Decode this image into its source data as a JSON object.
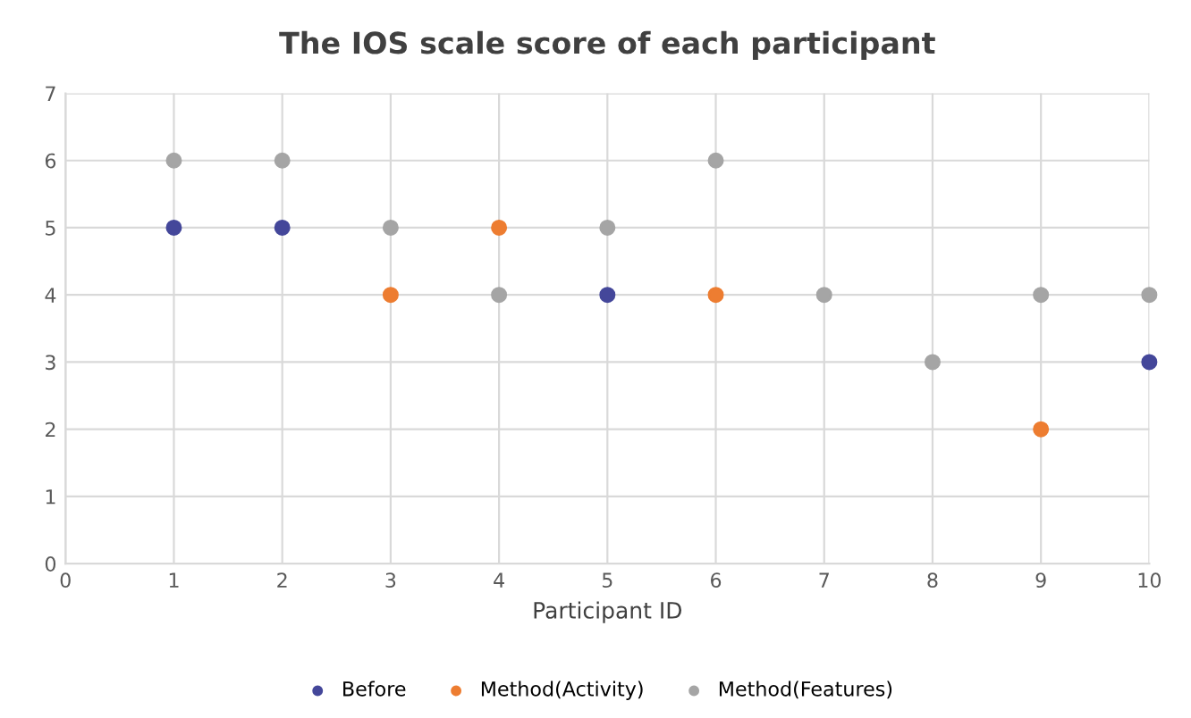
{
  "chart_data": {
    "type": "scatter",
    "title": "The IOS scale score of each participant",
    "xlabel": "Participant ID",
    "xlim": [
      0,
      10
    ],
    "xticks": [
      0,
      1,
      2,
      3,
      4,
      5,
      6,
      7,
      8,
      9,
      10
    ],
    "ylim": [
      0,
      7
    ],
    "yticks": [
      0,
      1,
      2,
      3,
      4,
      5,
      6,
      7
    ],
    "grid": true,
    "legend": "bottom",
    "marker": "circle",
    "series": [
      {
        "name": "Before",
        "color": "#44479a",
        "x": [
          1,
          2,
          5,
          10
        ],
        "values": [
          5,
          5,
          4,
          3
        ]
      },
      {
        "name": "Method(Activity)",
        "color": "#ed7d31",
        "x": [
          3,
          4,
          6,
          9
        ],
        "values": [
          4,
          5,
          4,
          2
        ]
      },
      {
        "name": "Method(Features)",
        "color": "#a5a5a5",
        "x": [
          1,
          2,
          3,
          4,
          5,
          6,
          7,
          8,
          9,
          10
        ],
        "values": [
          6,
          6,
          5,
          4,
          5,
          6,
          4,
          3,
          4,
          4
        ]
      }
    ]
  }
}
